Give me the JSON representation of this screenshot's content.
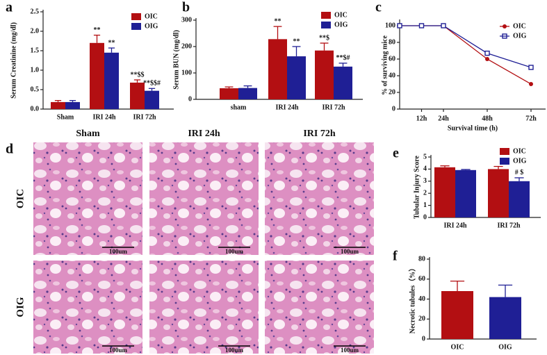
{
  "chart_data": [
    {
      "panel": "a",
      "type": "bar",
      "ylabel": "Serum Creatinine (mg/dl)",
      "categories": [
        "Sham",
        "IRI 24h",
        "IRI 72h"
      ],
      "series": [
        {
          "name": "OIC",
          "color": "#b30f12",
          "values": [
            0.18,
            1.7,
            0.68
          ],
          "errors": [
            0.04,
            0.2,
            0.07
          ],
          "annotations": [
            null,
            "**",
            "**$$"
          ]
        },
        {
          "name": "OIG",
          "color": "#1f1f95",
          "values": [
            0.18,
            1.45,
            0.47
          ],
          "errors": [
            0.04,
            0.12,
            0.06
          ],
          "annotations": [
            null,
            "**",
            "**$$#"
          ]
        }
      ],
      "ylim": [
        0,
        2.5
      ],
      "yticks": [
        {
          "value": 0,
          "label": "0.0"
        },
        {
          "value": 0.5,
          "label": "0.5"
        },
        {
          "value": 1,
          "label": "1.0"
        },
        {
          "value": 1.5,
          "label": "1.5"
        },
        {
          "value": 2,
          "label": "2.0"
        },
        {
          "value": 2.5,
          "label": "2.5"
        }
      ],
      "legend": "upper right"
    },
    {
      "panel": "b",
      "type": "bar",
      "ylabel": "Serum BUN (mg/dl)",
      "categories": [
        "sham",
        "IRI 24h",
        "IRI 72h"
      ],
      "series": [
        {
          "name": "OIC",
          "color": "#b30f12",
          "values": [
            42,
            228,
            185
          ],
          "errors": [
            5,
            48,
            28
          ],
          "annotations": [
            null,
            "**",
            "**$"
          ]
        },
        {
          "name": "OIG",
          "color": "#1f1f95",
          "values": [
            43,
            163,
            124
          ],
          "errors": [
            8,
            37,
            13
          ],
          "annotations": [
            null,
            "**",
            "**$#"
          ]
        }
      ],
      "ylim": [
        0,
        300
      ],
      "yticks": [
        0,
        100,
        200,
        300
      ],
      "legend": "upper right"
    },
    {
      "panel": "c",
      "type": "line",
      "ylabel": "% of surviving mice",
      "xlabel": "Survival time (h)",
      "x": [
        0,
        12,
        24,
        48,
        72
      ],
      "series": [
        {
          "name": "OIC",
          "color": "#b30f12",
          "marker": "circle",
          "values": [
            100,
            100,
            100,
            60,
            30
          ]
        },
        {
          "name": "OIG",
          "color": "#1f1f95",
          "marker": "square",
          "values": [
            100,
            100,
            100,
            67,
            50
          ]
        }
      ],
      "xlim": [
        0,
        80
      ],
      "xticks": [
        {
          "value": 12,
          "label": "12h"
        },
        {
          "value": 24,
          "label": "24h"
        },
        {
          "value": 48,
          "label": "48h"
        },
        {
          "value": 72,
          "label": "72h"
        }
      ],
      "ylim": [
        0,
        105
      ],
      "yticks": [
        0,
        20,
        40,
        60,
        80,
        100
      ],
      "legend": "upper right"
    },
    {
      "panel": "e",
      "type": "bar",
      "ylabel": "Tubular Injury Score",
      "categories": [
        "IRI 24h",
        "IRI 72h"
      ],
      "series": [
        {
          "name": "OIC",
          "color": "#b30f12",
          "values": [
            4.15,
            4.0
          ],
          "errors": [
            0.12,
            0.22
          ],
          "annotations": [
            null,
            null
          ]
        },
        {
          "name": "OIG",
          "color": "#1f1f95",
          "values": [
            3.92,
            3.0
          ],
          "errors": [
            0.05,
            0.28
          ],
          "annotations": [
            null,
            "# $"
          ]
        }
      ],
      "ylim": [
        0,
        5
      ],
      "yticks": [
        0,
        1,
        2,
        3,
        4,
        5
      ],
      "legend": "upper right"
    },
    {
      "panel": "f",
      "type": "bar",
      "ylabel": "Necrotic tubules（%）",
      "categories": [
        "OIC",
        "OIG"
      ],
      "values": [
        48,
        42
      ],
      "errors": [
        10,
        12
      ],
      "colors": [
        "#b30f12",
        "#1f1f95"
      ],
      "ylim": [
        0,
        80
      ],
      "yticks": [
        0,
        20,
        40,
        60,
        80
      ]
    }
  ],
  "micrographs": {
    "panel": "d",
    "columns": [
      "Sham",
      "IRI 24h",
      "IRI 72h"
    ],
    "rows": [
      "OIC",
      "OIG"
    ],
    "scale_bar": "100um"
  }
}
